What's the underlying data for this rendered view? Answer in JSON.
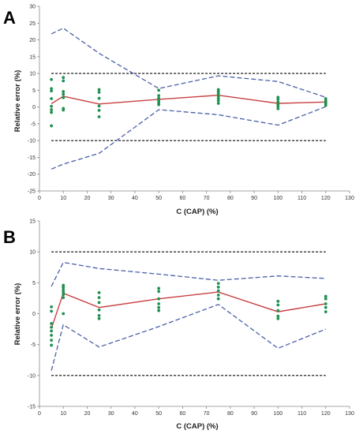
{
  "chart_data": [
    {
      "panel": "A",
      "type": "line",
      "xlabel": "C (CAP) (%)",
      "ylabel": "Relative error (%)",
      "xlim": [
        0,
        130
      ],
      "ylim": [
        -25,
        30
      ],
      "x_ticks": [
        0,
        10,
        20,
        30,
        40,
        50,
        60,
        70,
        80,
        90,
        100,
        110,
        120,
        130
      ],
      "y_ticks": [
        -25,
        -20,
        -15,
        -10,
        -5,
        0,
        5,
        10,
        15,
        20,
        25,
        30
      ],
      "limit_lines": [
        10,
        -10
      ],
      "mean": {
        "x": [
          5,
          10,
          25,
          50,
          75,
          100,
          120
        ],
        "y": [
          1.0,
          3.2,
          0.9,
          2.3,
          3.5,
          1.1,
          1.5
        ]
      },
      "upper_bound": {
        "x": [
          5,
          10,
          25,
          50,
          75,
          100,
          120
        ],
        "y": [
          21.8,
          23.5,
          16.0,
          5.5,
          9.3,
          7.6,
          2.9
        ]
      },
      "lower_bound": {
        "x": [
          5,
          10,
          25,
          50,
          75,
          100,
          120
        ],
        "y": [
          -18.5,
          -17.0,
          -13.8,
          -0.8,
          -2.3,
          -5.4,
          0.1
        ]
      },
      "points": [
        [
          5,
          8.2
        ],
        [
          5,
          5.5
        ],
        [
          5,
          4.8
        ],
        [
          5,
          2.5
        ],
        [
          5,
          0.2
        ],
        [
          5,
          -0.8
        ],
        [
          5,
          -1.6
        ],
        [
          5,
          -5.6
        ],
        [
          10,
          8.8
        ],
        [
          10,
          7.8
        ],
        [
          10,
          4.6
        ],
        [
          10,
          3.8
        ],
        [
          10,
          2.8
        ],
        [
          10,
          -0.4
        ],
        [
          10,
          -0.9
        ],
        [
          25,
          5.2
        ],
        [
          25,
          4.4
        ],
        [
          25,
          2.6
        ],
        [
          25,
          0.3
        ],
        [
          25,
          -1.0
        ],
        [
          25,
          -2.9
        ],
        [
          50,
          5.0
        ],
        [
          50,
          3.4
        ],
        [
          50,
          2.6
        ],
        [
          50,
          1.8
        ],
        [
          50,
          1.2
        ],
        [
          50,
          0.7
        ],
        [
          75,
          5.2
        ],
        [
          75,
          4.6
        ],
        [
          75,
          4.0
        ],
        [
          75,
          3.3
        ],
        [
          75,
          2.6
        ],
        [
          75,
          1.9
        ],
        [
          75,
          1.1
        ],
        [
          100,
          2.9
        ],
        [
          100,
          2.3
        ],
        [
          100,
          1.5
        ],
        [
          100,
          0.8
        ],
        [
          100,
          0.2
        ],
        [
          100,
          -0.5
        ],
        [
          120,
          2.5
        ],
        [
          120,
          1.9
        ],
        [
          120,
          1.4
        ],
        [
          120,
          1.0
        ],
        [
          120,
          0.5
        ]
      ]
    },
    {
      "panel": "B",
      "type": "line",
      "xlabel": "C (CAP) (%)",
      "ylabel": "Relative error (%)",
      "xlim": [
        0,
        130
      ],
      "ylim": [
        -15,
        15
      ],
      "x_ticks": [
        0,
        10,
        20,
        30,
        40,
        50,
        60,
        70,
        80,
        90,
        100,
        110,
        120,
        130
      ],
      "y_ticks": [
        -15,
        -10,
        -5,
        0,
        5,
        10,
        15
      ],
      "limit_lines": [
        10,
        -10
      ],
      "mean": {
        "x": [
          5,
          10,
          25,
          50,
          75,
          100,
          120
        ],
        "y": [
          -2.4,
          3.3,
          1.0,
          2.4,
          3.5,
          0.3,
          1.6
        ]
      },
      "upper_bound": {
        "x": [
          5,
          10,
          25,
          50,
          75,
          100,
          120
        ],
        "y": [
          4.4,
          8.3,
          7.3,
          6.4,
          5.4,
          6.1,
          5.7
        ]
      },
      "lower_bound": {
        "x": [
          5,
          10,
          25,
          50,
          75,
          100,
          120
        ],
        "y": [
          -9.2,
          -1.8,
          -5.4,
          -2.1,
          1.5,
          -5.6,
          -2.5
        ]
      },
      "points": [
        [
          5,
          1.1
        ],
        [
          5,
          0.4
        ],
        [
          5,
          -1.6
        ],
        [
          5,
          -2.2
        ],
        [
          5,
          -2.8
        ],
        [
          5,
          -3.5
        ],
        [
          5,
          -4.3
        ],
        [
          5,
          -5.1
        ],
        [
          10,
          4.6
        ],
        [
          10,
          4.3
        ],
        [
          10,
          3.9
        ],
        [
          10,
          3.5
        ],
        [
          10,
          3.1
        ],
        [
          10,
          2.6
        ],
        [
          10,
          0.0
        ],
        [
          25,
          3.4
        ],
        [
          25,
          2.6
        ],
        [
          25,
          1.8
        ],
        [
          25,
          0.6
        ],
        [
          25,
          -0.3
        ],
        [
          25,
          -0.8
        ],
        [
          50,
          4.1
        ],
        [
          50,
          3.6
        ],
        [
          50,
          2.4
        ],
        [
          50,
          1.6
        ],
        [
          50,
          1.0
        ],
        [
          50,
          0.5
        ],
        [
          75,
          4.9
        ],
        [
          75,
          4.3
        ],
        [
          75,
          3.7
        ],
        [
          75,
          3.0
        ],
        [
          75,
          2.4
        ],
        [
          100,
          2.0
        ],
        [
          100,
          1.4
        ],
        [
          100,
          0.5
        ],
        [
          100,
          -0.4
        ],
        [
          100,
          -0.8
        ],
        [
          120,
          2.8
        ],
        [
          120,
          2.4
        ],
        [
          120,
          1.6
        ],
        [
          120,
          1.0
        ],
        [
          120,
          0.3
        ]
      ]
    }
  ],
  "colors": {
    "mean": "#c84040",
    "bounds": "#4a5fa6",
    "points": "#1e9150",
    "limits": "#000000",
    "axis": "#888888"
  }
}
